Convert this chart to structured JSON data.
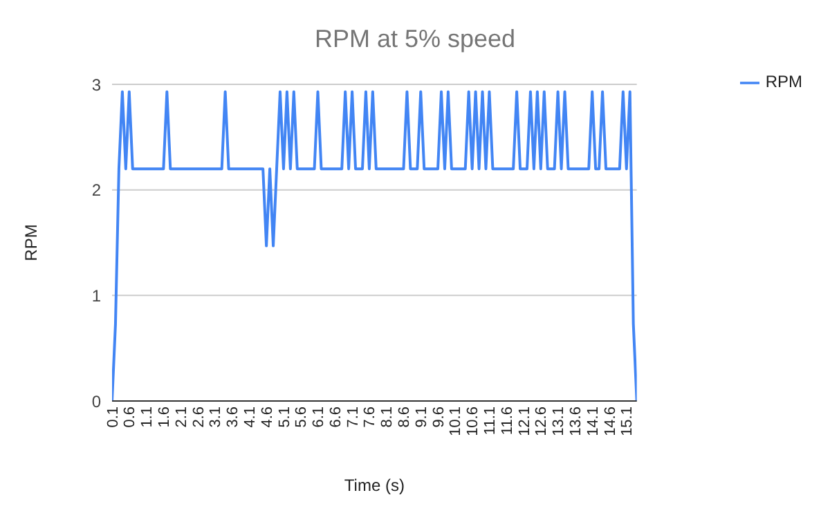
{
  "chart_data": {
    "type": "line",
    "title": "RPM at 5% speed",
    "xlabel": "Time (s)",
    "ylabel": "RPM",
    "x": [
      0.1,
      0.2,
      0.3,
      0.4,
      0.5,
      0.6,
      0.7,
      0.8,
      0.9,
      1.0,
      1.1,
      1.2,
      1.3,
      1.4,
      1.5,
      1.6,
      1.7,
      1.8,
      1.9,
      2.0,
      2.1,
      2.2,
      2.3,
      2.4,
      2.5,
      2.6,
      2.7,
      2.8,
      2.9,
      3.0,
      3.1,
      3.2,
      3.3,
      3.4,
      3.5,
      3.6,
      3.7,
      3.8,
      3.9,
      4.0,
      4.1,
      4.2,
      4.3,
      4.4,
      4.5,
      4.6,
      4.7,
      4.8,
      4.9,
      5.0,
      5.1,
      5.2,
      5.3,
      5.4,
      5.5,
      5.6,
      5.7,
      5.8,
      5.9,
      6.0,
      6.1,
      6.2,
      6.3,
      6.4,
      6.5,
      6.6,
      6.7,
      6.8,
      6.9,
      7.0,
      7.1,
      7.2,
      7.3,
      7.4,
      7.5,
      7.6,
      7.7,
      7.8,
      7.9,
      8.0,
      8.1,
      8.2,
      8.3,
      8.4,
      8.5,
      8.6,
      8.7,
      8.8,
      8.9,
      9.0,
      9.1,
      9.2,
      9.3,
      9.4,
      9.5,
      9.6,
      9.7,
      9.8,
      9.9,
      10.0,
      10.1,
      10.2,
      10.3,
      10.4,
      10.5,
      10.6,
      10.7,
      10.8,
      10.9,
      11.0,
      11.1,
      11.2,
      11.3,
      11.4,
      11.5,
      11.6,
      11.7,
      11.8,
      11.9,
      12.0,
      12.1,
      12.2,
      12.3,
      12.4,
      12.5,
      12.6,
      12.7,
      12.8,
      12.9,
      13.0,
      13.1,
      13.2,
      13.3,
      13.4,
      13.5,
      13.6,
      13.7,
      13.8,
      13.9,
      14.0,
      14.1,
      14.2,
      14.3,
      14.4,
      14.5,
      14.6,
      14.7,
      14.8,
      14.9,
      15.0,
      15.1,
      15.2,
      15.3,
      15.4
    ],
    "series": [
      {
        "name": "RPM",
        "color": "#4285f4",
        "values": [
          0,
          0.73,
          2.2,
          2.93,
          2.2,
          2.93,
          2.2,
          2.2,
          2.2,
          2.2,
          2.2,
          2.2,
          2.2,
          2.2,
          2.2,
          2.2,
          2.93,
          2.2,
          2.2,
          2.2,
          2.2,
          2.2,
          2.2,
          2.2,
          2.2,
          2.2,
          2.2,
          2.2,
          2.2,
          2.2,
          2.2,
          2.2,
          2.2,
          2.93,
          2.2,
          2.2,
          2.2,
          2.2,
          2.2,
          2.2,
          2.2,
          2.2,
          2.2,
          2.2,
          2.2,
          1.47,
          2.2,
          1.47,
          2.2,
          2.93,
          2.2,
          2.93,
          2.2,
          2.93,
          2.2,
          2.2,
          2.2,
          2.2,
          2.2,
          2.2,
          2.93,
          2.2,
          2.2,
          2.2,
          2.2,
          2.2,
          2.2,
          2.2,
          2.93,
          2.2,
          2.93,
          2.2,
          2.2,
          2.2,
          2.93,
          2.2,
          2.93,
          2.2,
          2.2,
          2.2,
          2.2,
          2.2,
          2.2,
          2.2,
          2.2,
          2.2,
          2.93,
          2.2,
          2.2,
          2.2,
          2.93,
          2.2,
          2.2,
          2.2,
          2.2,
          2.2,
          2.93,
          2.2,
          2.93,
          2.2,
          2.2,
          2.2,
          2.2,
          2.2,
          2.93,
          2.2,
          2.93,
          2.2,
          2.93,
          2.2,
          2.93,
          2.2,
          2.2,
          2.2,
          2.2,
          2.2,
          2.2,
          2.2,
          2.93,
          2.2,
          2.2,
          2.2,
          2.93,
          2.2,
          2.93,
          2.2,
          2.93,
          2.2,
          2.2,
          2.2,
          2.93,
          2.2,
          2.93,
          2.2,
          2.2,
          2.2,
          2.2,
          2.2,
          2.2,
          2.2,
          2.93,
          2.2,
          2.2,
          2.93,
          2.2,
          2.2,
          2.2,
          2.2,
          2.2,
          2.93,
          2.2,
          2.93,
          0.73,
          0
        ]
      }
    ],
    "xlim": [
      0.1,
      15.4
    ],
    "xticks": [
      0.1,
      0.6,
      1.1,
      1.6,
      2.1,
      2.6,
      3.1,
      3.6,
      4.1,
      4.6,
      5.1,
      5.6,
      6.1,
      6.6,
      7.1,
      7.6,
      8.1,
      8.6,
      9.1,
      9.6,
      10.1,
      10.6,
      11.1,
      11.6,
      12.1,
      12.6,
      13.1,
      13.6,
      14.1,
      14.6,
      15.1
    ],
    "ylim": [
      0,
      3
    ],
    "yticks": [
      0,
      1,
      2,
      3
    ],
    "grid": "y",
    "legend": "top right",
    "marker": "none",
    "line_style": "solid"
  }
}
